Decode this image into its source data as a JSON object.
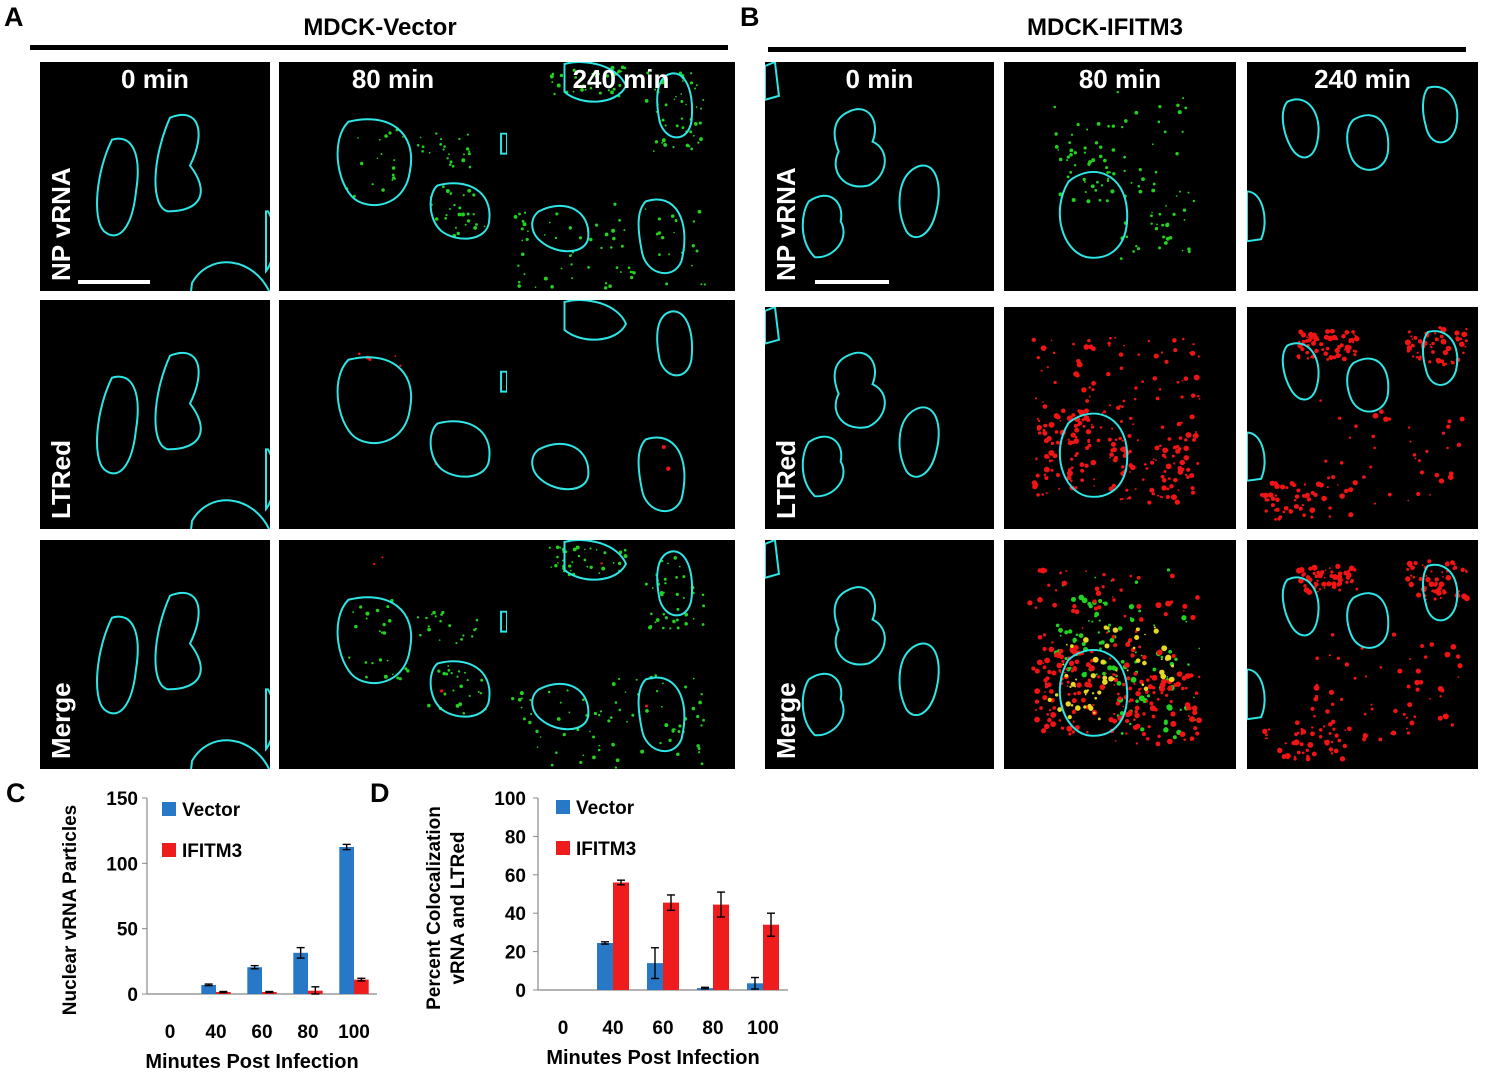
{
  "panel_A": {
    "label": "A",
    "title": "MDCK-Vector",
    "columns": [
      "0 min",
      "80 min",
      "240 min"
    ],
    "rows": [
      "NP vRNA",
      "LTRed",
      "Merge"
    ]
  },
  "panel_B": {
    "label": "B",
    "title": "MDCK-IFITM3",
    "columns": [
      "0 min",
      "80 min",
      "240 min"
    ],
    "rows": [
      "NP vRNA",
      "LTRed",
      "Merge"
    ]
  },
  "colors": {
    "nucleus_outline": "#2ee6e6",
    "vrna": "#22d21e",
    "ltred": "#f01414",
    "colocalized": "#e8d820",
    "vector_bar": "#2878c8",
    "ifitm3_bar": "#ee1c1c"
  },
  "chart_data": [
    {
      "panel_label": "C",
      "type": "bar",
      "categories": [
        "0",
        "40",
        "60",
        "80",
        "100"
      ],
      "series": [
        {
          "name": "Vector",
          "values": [
            0,
            7,
            20.5,
            31.5,
            112.5
          ],
          "errors": [
            0,
            0.6,
            1.2,
            4,
            2
          ]
        },
        {
          "name": "IFITM3",
          "values": [
            0,
            1.5,
            1.5,
            2.5,
            11
          ],
          "errors": [
            0,
            0.4,
            0.4,
            3,
            1
          ]
        }
      ],
      "xlabel": "Minutes Post Infection",
      "ylabel": "Nuclear vRNA Particles",
      "ylim": [
        0,
        150
      ],
      "yticks": [
        0,
        50,
        100,
        150
      ],
      "legend_position": "top-left"
    },
    {
      "panel_label": "D",
      "type": "bar",
      "categories": [
        "0",
        "40",
        "60",
        "80",
        "100"
      ],
      "series": [
        {
          "name": "Vector",
          "values": [
            0,
            24.5,
            14,
            1,
            3.5
          ],
          "errors": [
            0,
            0.6,
            8,
            0.4,
            3
          ]
        },
        {
          "name": "IFITM3",
          "values": [
            0,
            56,
            45.5,
            44.5,
            34
          ],
          "errors": [
            0,
            1.2,
            4,
            6.5,
            6
          ]
        }
      ],
      "xlabel": "Minutes Post Infection",
      "ylabel_lines": [
        "Percent Colocalization",
        "vRNA and LTRed"
      ],
      "ylim": [
        0,
        100
      ],
      "yticks": [
        0,
        20,
        40,
        60,
        80,
        100
      ],
      "legend_position": "top-left"
    }
  ]
}
